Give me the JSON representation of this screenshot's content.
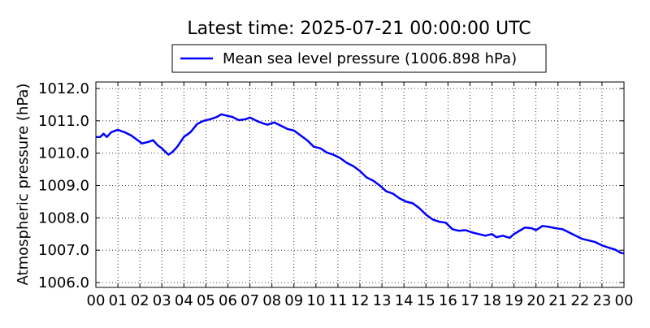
{
  "chart_data": {
    "type": "line",
    "title": "Latest time: 2025-07-21 00:00:00 UTC",
    "ylabel": "Atmospheric pressure (hPa)",
    "xlabel": "",
    "x_tick_labels": [
      "00",
      "01",
      "02",
      "03",
      "04",
      "05",
      "06",
      "07",
      "08",
      "09",
      "10",
      "11",
      "12",
      "13",
      "14",
      "15",
      "16",
      "17",
      "18",
      "19",
      "20",
      "21",
      "22",
      "23",
      "00"
    ],
    "y_ticks": [
      1006.0,
      1007.0,
      1008.0,
      1009.0,
      1010.0,
      1011.0,
      1012.0
    ],
    "y_tick_labels": [
      "1006.0",
      "1007.0",
      "1008.0",
      "1009.0",
      "1010.0",
      "1011.0",
      "1012.0"
    ],
    "xlim": [
      0,
      24
    ],
    "ylim": [
      1005.85,
      1012.2
    ],
    "grid": true,
    "legend_position": "top-center",
    "x_unit": "hour (UTC)",
    "series": [
      {
        "name": "Mean sea level pressure (1006.898 hPa)",
        "color": "#0000ff",
        "x": [
          0.0,
          0.2,
          0.35,
          0.5,
          0.7,
          0.9,
          1.0,
          1.3,
          1.6,
          1.8,
          2.1,
          2.4,
          2.6,
          2.8,
          3.0,
          3.15,
          3.3,
          3.5,
          3.7,
          4.0,
          4.3,
          4.6,
          4.9,
          5.2,
          5.5,
          5.7,
          6.0,
          6.2,
          6.5,
          6.8,
          7.0,
          7.3,
          7.6,
          7.8,
          8.1,
          8.4,
          8.7,
          9.0,
          9.3,
          9.6,
          9.9,
          10.2,
          10.5,
          10.8,
          11.1,
          11.4,
          11.7,
          12.0,
          12.3,
          12.6,
          12.9,
          13.2,
          13.5,
          13.8,
          14.1,
          14.4,
          14.7,
          15.0,
          15.3,
          15.6,
          15.9,
          16.2,
          16.5,
          16.8,
          17.1,
          17.4,
          17.7,
          18.0,
          18.2,
          18.5,
          18.8,
          19.0,
          19.3,
          19.5,
          19.8,
          20.0,
          20.3,
          20.6,
          20.9,
          21.2,
          21.5,
          21.8,
          22.1,
          22.4,
          22.7,
          23.0,
          23.3,
          23.6,
          23.85,
          24.0
        ],
        "y": [
          1010.5,
          1010.5,
          1010.6,
          1010.5,
          1010.65,
          1010.7,
          1010.72,
          1010.65,
          1010.55,
          1010.45,
          1010.3,
          1010.35,
          1010.4,
          1010.25,
          1010.15,
          1010.05,
          1009.95,
          1010.05,
          1010.2,
          1010.5,
          1010.65,
          1010.9,
          1011.0,
          1011.05,
          1011.12,
          1011.2,
          1011.15,
          1011.12,
          1011.02,
          1011.05,
          1011.1,
          1011.0,
          1010.92,
          1010.88,
          1010.95,
          1010.85,
          1010.75,
          1010.7,
          1010.55,
          1010.4,
          1010.2,
          1010.15,
          1010.02,
          1009.95,
          1009.85,
          1009.7,
          1009.6,
          1009.45,
          1009.25,
          1009.15,
          1009.0,
          1008.82,
          1008.75,
          1008.6,
          1008.5,
          1008.45,
          1008.3,
          1008.1,
          1007.95,
          1007.88,
          1007.85,
          1007.65,
          1007.6,
          1007.62,
          1007.55,
          1007.5,
          1007.45,
          1007.5,
          1007.4,
          1007.45,
          1007.38,
          1007.5,
          1007.62,
          1007.7,
          1007.68,
          1007.62,
          1007.75,
          1007.72,
          1007.68,
          1007.65,
          1007.55,
          1007.45,
          1007.35,
          1007.3,
          1007.25,
          1007.15,
          1007.08,
          1007.02,
          1006.92,
          1006.898
        ]
      }
    ]
  }
}
